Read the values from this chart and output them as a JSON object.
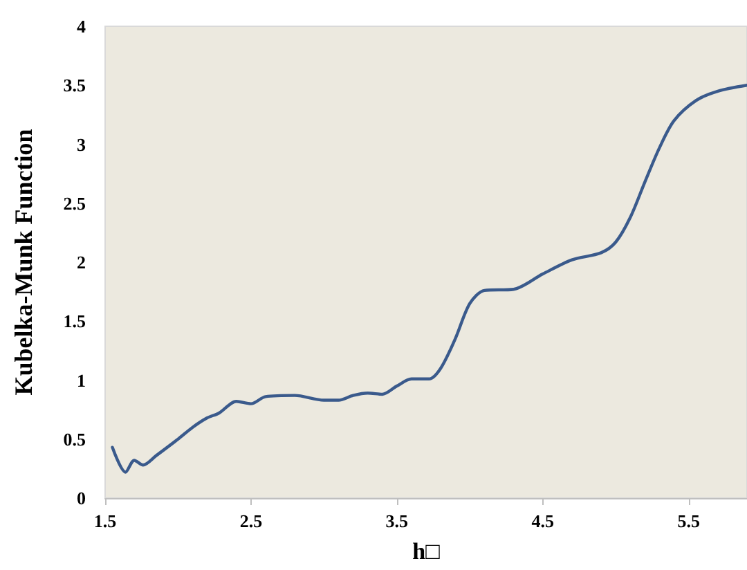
{
  "chart_data": {
    "type": "line",
    "xlabel": "h□",
    "ylabel": "Kubelka-Munk Function",
    "x": [
      1.55,
      1.64,
      1.7,
      1.76,
      1.85,
      2.0,
      2.1,
      2.2,
      2.28,
      2.4,
      2.5,
      2.6,
      2.8,
      3.0,
      3.1,
      3.2,
      3.3,
      3.4,
      3.5,
      3.6,
      3.72,
      3.8,
      3.9,
      4.0,
      4.1,
      4.3,
      4.5,
      4.7,
      4.9,
      5.0,
      5.1,
      5.2,
      5.3,
      5.4,
      5.55,
      5.7,
      5.9
    ],
    "series": [
      {
        "color": "#3a5a8c",
        "values": [
          0.43,
          0.22,
          0.32,
          0.28,
          0.36,
          0.5,
          0.6,
          0.68,
          0.72,
          0.82,
          0.8,
          0.86,
          0.87,
          0.83,
          0.83,
          0.87,
          0.89,
          0.88,
          0.95,
          1.01,
          1.01,
          1.1,
          1.35,
          1.65,
          1.76,
          1.77,
          1.9,
          2.02,
          2.08,
          2.17,
          2.38,
          2.68,
          2.97,
          3.2,
          3.37,
          3.45,
          3.5
        ]
      }
    ],
    "xlim": [
      1.5,
      5.9
    ],
    "xticks": [
      1.5,
      2.5,
      3.5,
      4.5,
      5.5
    ],
    "ylim": [
      0,
      4
    ],
    "yticks": [
      0,
      0.5,
      1,
      1.5,
      2,
      2.5,
      3,
      3.5,
      4
    ],
    "marker": "none",
    "line_style": "solid"
  }
}
